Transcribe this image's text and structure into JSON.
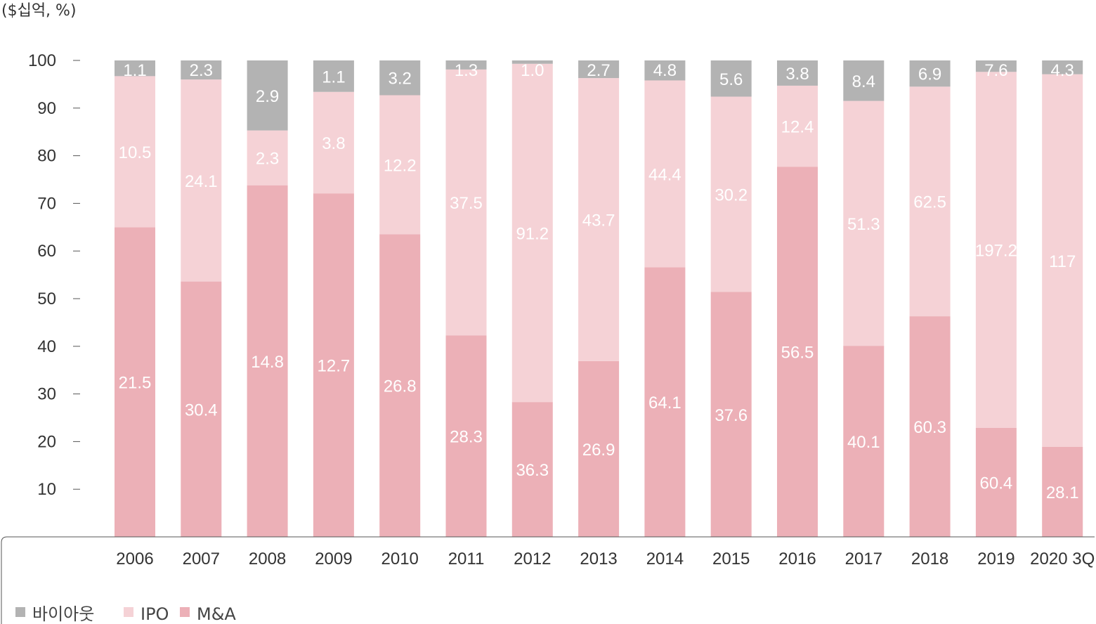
{
  "chart_data": {
    "type": "bar",
    "stacked": true,
    "unit_label": "($십억, %)",
    "ylim": [
      0,
      100
    ],
    "yticks": [
      10,
      20,
      30,
      40,
      50,
      60,
      70,
      80,
      90,
      100
    ],
    "grid": false,
    "legend_position": "bottom-left",
    "categories": [
      "2006",
      "2007",
      "2008",
      "2009",
      "2010",
      "2011",
      "2012",
      "2013",
      "2014",
      "2015",
      "2016",
      "2017",
      "2018",
      "2019",
      "2020 3Q"
    ],
    "series": [
      {
        "name": "M&A",
        "color": "#ecb0b7",
        "labels": [
          "21.5",
          "30.4",
          "14.8",
          "12.7",
          "26.8",
          "28.3",
          "36.3",
          "26.9",
          "64.1",
          "37.6",
          "56.5",
          "40.1",
          "60.3",
          "60.4",
          "28.1"
        ],
        "share": [
          65,
          53.6,
          73.8,
          72.1,
          63.5,
          42.3,
          28.3,
          36.9,
          56.6,
          51.4,
          77.7,
          40.1,
          46.3,
          22.9,
          18.9
        ]
      },
      {
        "name": "IPO",
        "color": "#f5d2d6",
        "labels": [
          "10.5",
          "24.1",
          "2.3",
          "3.8",
          "12.2",
          "37.5",
          "91.2",
          "43.7",
          "44.4",
          "30.2",
          "12.4",
          "51.3",
          "62.5",
          "197.2",
          "117"
        ],
        "share": [
          31.7,
          42.4,
          11.5,
          21.3,
          29.2,
          55.8,
          71.0,
          59.4,
          39.2,
          41.0,
          17.0,
          51.4,
          48.2,
          74.7,
          78.3
        ]
      },
      {
        "name": "바이아웃",
        "color": "#b3b3b3",
        "labels": [
          "1.1",
          "2.3",
          "2.9",
          "1.1",
          "3.2",
          "1.3",
          "1.0",
          "2.7",
          "4.8",
          "5.6",
          "3.8",
          "8.4",
          "6.9",
          "7.6",
          "4.3"
        ],
        "share": [
          3.3,
          4.0,
          14.7,
          6.6,
          7.3,
          1.9,
          0.7,
          3.7,
          4.2,
          7.6,
          5.3,
          8.5,
          5.5,
          2.4,
          2.9
        ]
      }
    ],
    "legend": [
      {
        "name": "바이아웃",
        "color": "#b3b3b3"
      },
      {
        "name": "IPO",
        "color": "#f5d2d6"
      },
      {
        "name": "M&A",
        "color": "#ecb0b7"
      }
    ]
  }
}
